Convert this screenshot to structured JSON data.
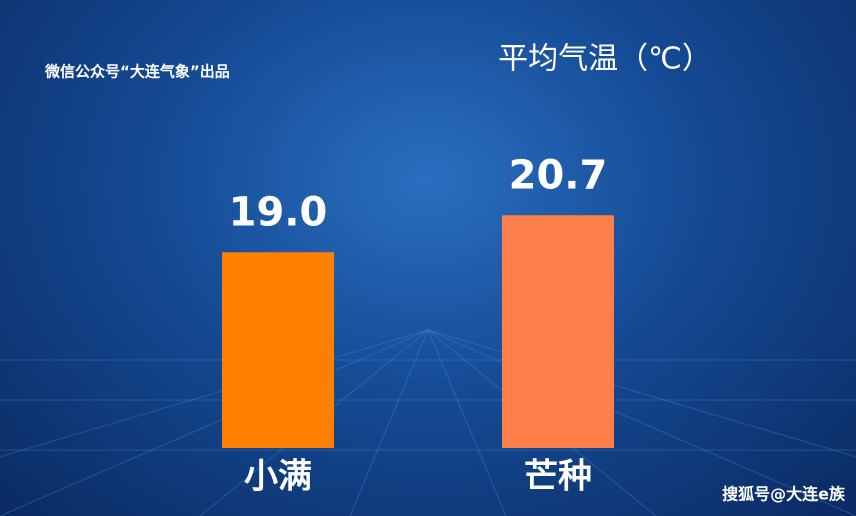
{
  "chart_data": {
    "type": "bar",
    "title": "平均气温（℃）",
    "source": "微信公众号“大连气象”出品",
    "watermark": "搜狐号@大连e族",
    "categories": [
      "小满",
      "芒种"
    ],
    "values": [
      19.0,
      20.7
    ],
    "value_labels": [
      "19.0",
      "20.7"
    ],
    "colors": [
      "#ff8000",
      "#ff7f4a"
    ],
    "ylim": [
      10,
      26
    ]
  }
}
